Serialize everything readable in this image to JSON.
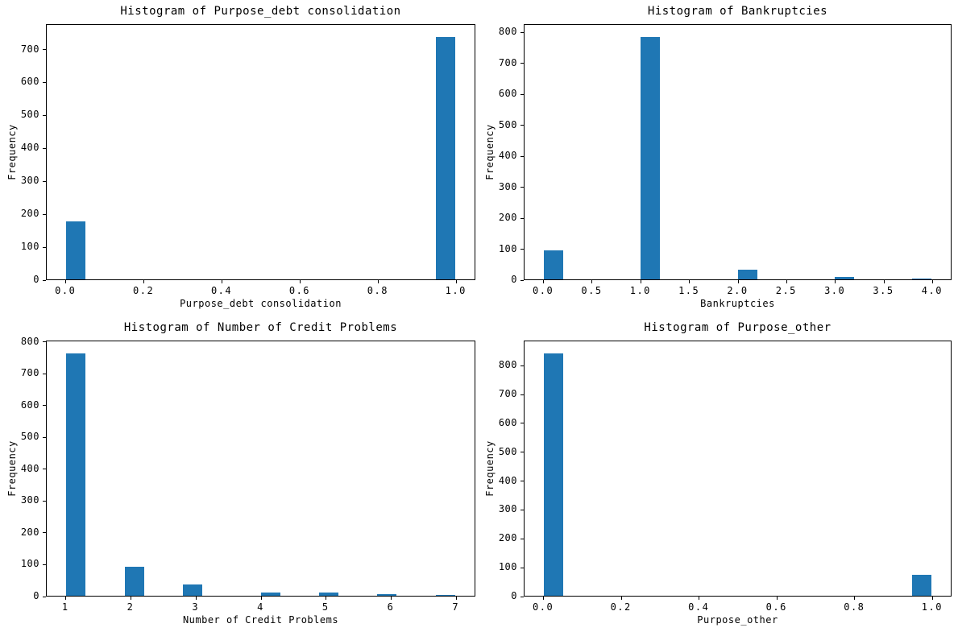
{
  "figure": {
    "background": "#ffffff",
    "text_color": "#000000",
    "axis_color": "#000000",
    "bar_color": "#1f77b4"
  },
  "chart_data": [
    {
      "type": "bar",
      "title": "Histogram of Purpose_debt consolidation",
      "xlabel": "Purpose_debt consolidation",
      "ylabel": "Frequency",
      "xlim": [
        -0.05,
        1.05
      ],
      "ylim": [
        0,
        777
      ],
      "grid": false,
      "xtick_values": [
        0.0,
        0.2,
        0.4,
        0.6,
        0.8,
        1.0
      ],
      "xtick_labels": [
        "0.0",
        "0.2",
        "0.4",
        "0.6",
        "0.8",
        "1.0"
      ],
      "ytick_values": [
        0,
        100,
        200,
        300,
        400,
        500,
        600,
        700
      ],
      "ytick_labels": [
        "0",
        "100",
        "200",
        "300",
        "400",
        "500",
        "600",
        "700"
      ],
      "bars": [
        {
          "x0": 0.0,
          "x1": 0.05,
          "freq": 176
        },
        {
          "x0": 0.95,
          "x1": 1.0,
          "freq": 740
        }
      ]
    },
    {
      "type": "bar",
      "title": "Histogram of Bankruptcies",
      "xlabel": "Bankruptcies",
      "ylabel": "Frequency",
      "xlim": [
        -0.2,
        4.2
      ],
      "ylim": [
        0,
        826
      ],
      "grid": false,
      "xtick_values": [
        0.0,
        0.5,
        1.0,
        1.5,
        2.0,
        2.5,
        3.0,
        3.5,
        4.0
      ],
      "xtick_labels": [
        "0.0",
        "0.5",
        "1.0",
        "1.5",
        "2.0",
        "2.5",
        "3.0",
        "3.5",
        "4.0"
      ],
      "ytick_values": [
        0,
        100,
        200,
        300,
        400,
        500,
        600,
        700,
        800
      ],
      "ytick_labels": [
        "0",
        "100",
        "200",
        "300",
        "400",
        "500",
        "600",
        "700",
        "800"
      ],
      "bars": [
        {
          "x0": 0.0,
          "x1": 0.2,
          "freq": 93
        },
        {
          "x0": 1.0,
          "x1": 1.2,
          "freq": 787
        },
        {
          "x0": 2.0,
          "x1": 2.2,
          "freq": 32
        },
        {
          "x0": 3.0,
          "x1": 3.2,
          "freq": 8
        },
        {
          "x0": 3.8,
          "x1": 4.0,
          "freq": 3
        }
      ]
    },
    {
      "type": "bar",
      "title": "Histogram of Number of Credit Problems",
      "xlabel": "Number of Credit Problems",
      "ylabel": "Frequency",
      "xlim": [
        0.7,
        7.3
      ],
      "ylim": [
        0,
        805
      ],
      "grid": false,
      "xtick_values": [
        1,
        2,
        3,
        4,
        5,
        6,
        7
      ],
      "xtick_labels": [
        "1",
        "2",
        "3",
        "4",
        "5",
        "6",
        "7"
      ],
      "ytick_values": [
        0,
        100,
        200,
        300,
        400,
        500,
        600,
        700,
        800
      ],
      "ytick_labels": [
        "0",
        "100",
        "200",
        "300",
        "400",
        "500",
        "600",
        "700",
        "800"
      ],
      "bars": [
        {
          "x0": 1.0,
          "x1": 1.3,
          "freq": 767
        },
        {
          "x0": 1.9,
          "x1": 2.2,
          "freq": 93
        },
        {
          "x0": 2.8,
          "x1": 3.1,
          "freq": 35
        },
        {
          "x0": 4.0,
          "x1": 4.3,
          "freq": 11
        },
        {
          "x0": 4.9,
          "x1": 5.2,
          "freq": 9
        },
        {
          "x0": 5.8,
          "x1": 6.1,
          "freq": 6
        },
        {
          "x0": 6.7,
          "x1": 7.0,
          "freq": 3
        }
      ]
    },
    {
      "type": "bar",
      "title": "Histogram of Purpose_other",
      "xlabel": "Purpose_other",
      "ylabel": "Frequency",
      "xlim": [
        -0.05,
        1.05
      ],
      "ylim": [
        0,
        887
      ],
      "grid": false,
      "xtick_values": [
        0.0,
        0.2,
        0.4,
        0.6,
        0.8,
        1.0
      ],
      "xtick_labels": [
        "0.0",
        "0.2",
        "0.4",
        "0.6",
        "0.8",
        "1.0"
      ],
      "ytick_values": [
        0,
        100,
        200,
        300,
        400,
        500,
        600,
        700,
        800
      ],
      "ytick_labels": [
        "0",
        "100",
        "200",
        "300",
        "400",
        "500",
        "600",
        "700",
        "800"
      ],
      "bars": [
        {
          "x0": 0.0,
          "x1": 0.05,
          "freq": 845
        },
        {
          "x0": 0.95,
          "x1": 1.0,
          "freq": 73
        }
      ]
    }
  ]
}
